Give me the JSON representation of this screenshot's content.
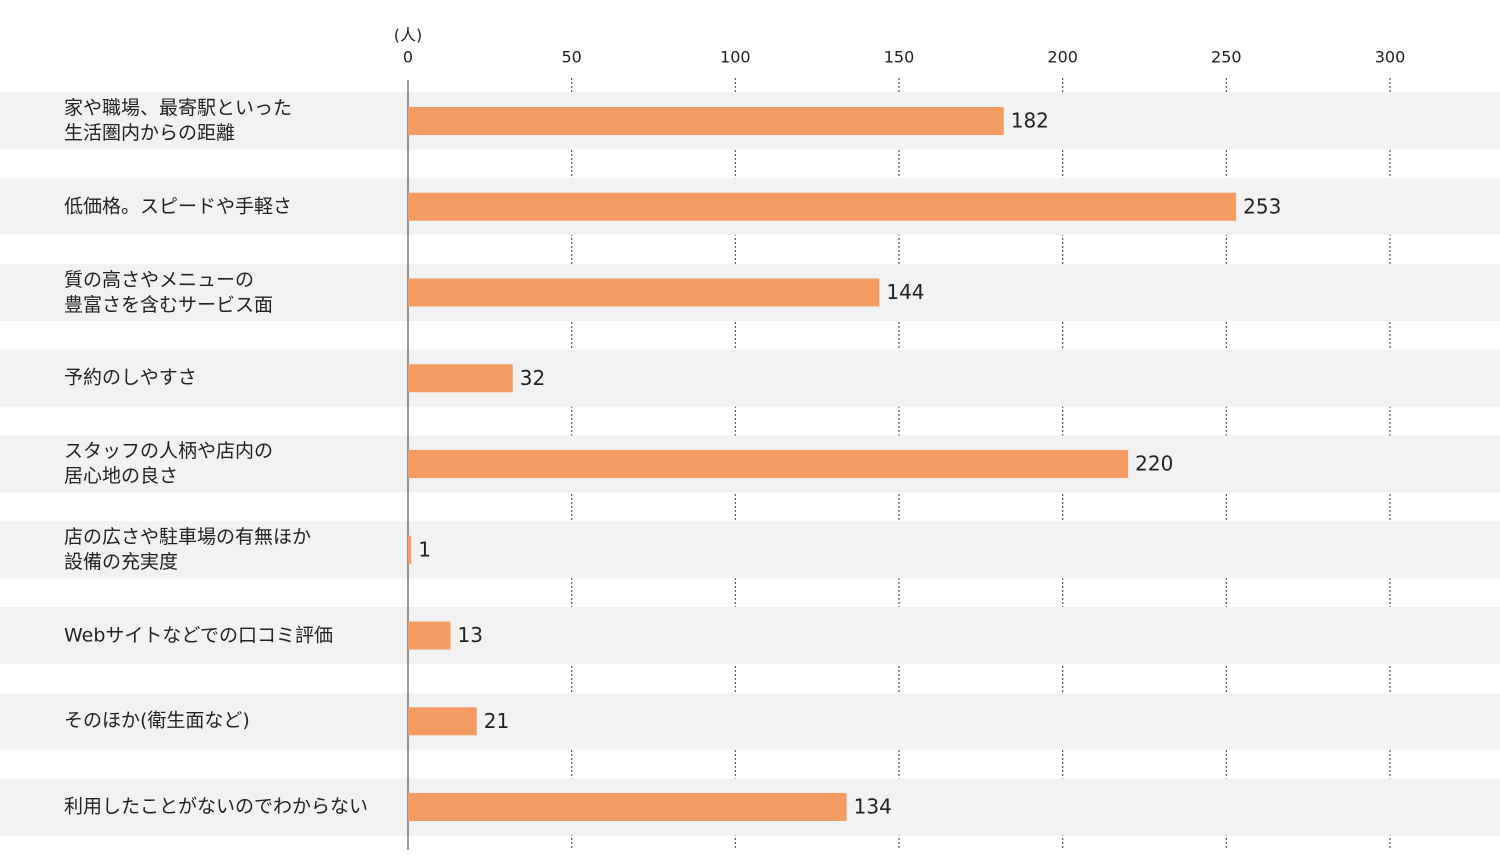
{
  "chart_data": {
    "type": "bar",
    "orientation": "horizontal",
    "unit_label": "(人)",
    "categories": [
      "家や職場、最寄駅といった\n生活圏内からの距離",
      "低価格。スピードや手軽さ",
      "質の高さやメニューの\n豊富さを含むサービス面",
      "予約のしやすさ",
      "スタッフの人柄や店内の\n居心地の良さ",
      "店の広さや駐車場の有無ほか\n設備の充実度",
      "Webサイトなどでの口コミ評価",
      "そのほか(衛生面など)",
      "利用したことがないのでわからない"
    ],
    "values": [
      182,
      253,
      144,
      32,
      220,
      1,
      13,
      21,
      134
    ],
    "color": "#f29b63",
    "xlim": [
      0,
      300
    ],
    "xticks": [
      0,
      50,
      100,
      150,
      200,
      250,
      300
    ],
    "grid": true
  }
}
